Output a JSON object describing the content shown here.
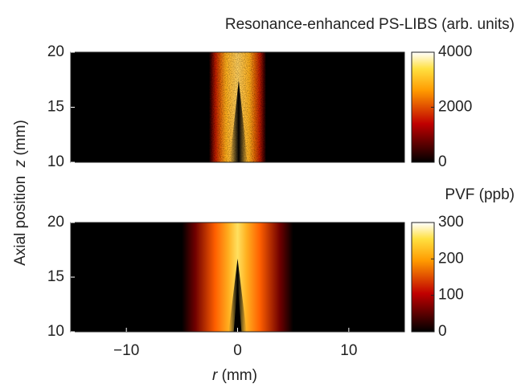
{
  "chart_data": [
    {
      "type": "heatmap",
      "colorbar_label": "Resonance-enhanced PS-LIBS (arb. units)",
      "ylabel": "Axial position",
      "ylabel_var": "z",
      "ylabel_unit": "(mm)",
      "xlim": [
        -15,
        15
      ],
      "ylim": [
        10,
        20
      ],
      "yticks": [
        10,
        15,
        20
      ],
      "clim": [
        0,
        4000
      ],
      "cticks": [
        0,
        2000,
        4000
      ],
      "colormap": "hot"
    },
    {
      "type": "heatmap",
      "colorbar_label": "PVF (ppb)",
      "xlabel_var": "r",
      "xlabel_unit": "(mm)",
      "xlim": [
        -15,
        15
      ],
      "ylim": [
        10,
        20
      ],
      "yticks": [
        10,
        15,
        20
      ],
      "xticks": [
        {
          "value": -10,
          "label": "−10"
        },
        0,
        10
      ],
      "clim": [
        0,
        300
      ],
      "cticks": [
        0,
        100,
        200,
        300
      ],
      "colormap": "hot"
    }
  ]
}
